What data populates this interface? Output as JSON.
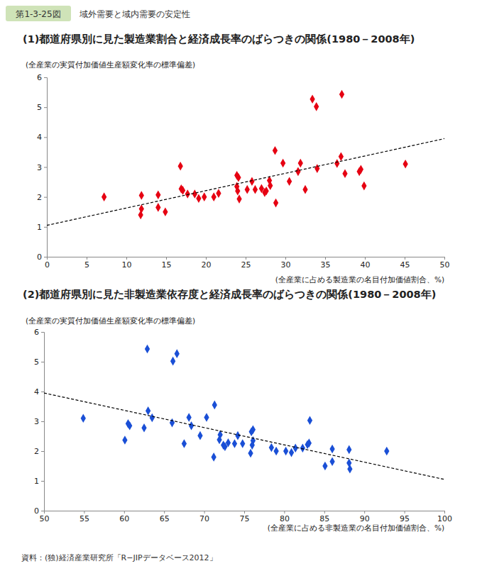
{
  "figure_number": "第1-3-25図",
  "figure_title": "域外需要と域内需要の安定性",
  "source": "資料：(独)経済産業研究所「R−JIPデータベース2012」",
  "chart_data": [
    {
      "type": "scatter",
      "title": "(1)都道府県別に見た製造業割合と経済成長率のばらつきの関係(1980－2008年)",
      "y_label": "(全産業の実質付加価値生産額変化率の標準偏差)",
      "x_label": "(全産業に占める製造業の名目付加価値割合、%)",
      "xlim": [
        0,
        50
      ],
      "xticks": [
        0,
        5,
        10,
        15,
        20,
        25,
        30,
        35,
        40,
        45,
        50
      ],
      "ylim": [
        0,
        6
      ],
      "yticks": [
        0,
        1,
        2,
        3,
        4,
        5,
        6
      ],
      "grid": false,
      "series": [
        {
          "type": "scatter",
          "marker": "diamond",
          "color": "#e60012",
          "x": [
            7.2,
            11.9,
            11.9,
            11.8,
            14.0,
            14.0,
            14.9,
            16.8,
            16.9,
            17.1,
            17.7,
            18.6,
            19.1,
            19.8,
            21.0,
            21.6,
            23.9,
            24.1,
            23.9,
            24.0,
            24.2,
            25.2,
            25.8,
            26.2,
            27.0,
            27.4,
            27.6,
            28.0,
            28.1,
            28.7,
            28.8,
            29.7,
            30.5,
            31.6,
            31.9,
            32.5,
            33.4,
            33.9,
            34.0,
            36.5,
            37.0,
            37.1,
            37.5,
            39.3,
            39.5,
            39.9,
            45.1
          ],
          "values": [
            2.0,
            2.05,
            1.6,
            1.4,
            2.07,
            1.65,
            1.5,
            3.03,
            2.27,
            2.22,
            2.1,
            2.1,
            1.95,
            2.0,
            2.0,
            2.12,
            2.72,
            2.65,
            2.35,
            2.2,
            1.93,
            2.25,
            2.52,
            2.25,
            2.28,
            2.15,
            2.2,
            2.55,
            2.38,
            3.55,
            1.8,
            3.13,
            2.52,
            2.85,
            3.13,
            2.25,
            5.27,
            5.02,
            2.95,
            3.12,
            3.35,
            5.43,
            2.78,
            2.85,
            2.92,
            2.37,
            3.1
          ]
        },
        {
          "type": "line",
          "line_style": "dashed",
          "color": "#000000",
          "x": [
            0,
            50
          ],
          "values": [
            1.05,
            3.95
          ]
        }
      ]
    },
    {
      "type": "scatter",
      "title": "(2)都道府県別に見た非製造業依存度と経済成長率のばらつきの関係(1980－2008年)",
      "y_label": "(全産業の実質付加価値生産額変化率の標準偏差)",
      "x_label": "(全産業に占める非製造業の名目付加価値割合、%)",
      "xlim": [
        50,
        100
      ],
      "xticks": [
        50,
        55,
        60,
        65,
        70,
        75,
        80,
        85,
        90,
        95,
        100
      ],
      "ylim": [
        0,
        6
      ],
      "yticks": [
        0,
        1,
        2,
        3,
        4,
        5,
        6
      ],
      "grid": false,
      "series": [
        {
          "type": "scatter",
          "marker": "diamond",
          "color": "#1a4fd6",
          "x": [
            92.8,
            88.1,
            88.1,
            88.2,
            86.0,
            86.0,
            85.1,
            83.2,
            83.1,
            82.9,
            82.3,
            81.4,
            80.9,
            80.2,
            79.0,
            78.4,
            76.1,
            75.9,
            76.1,
            76.0,
            75.8,
            74.8,
            74.2,
            73.8,
            73.0,
            72.6,
            72.4,
            72.0,
            71.9,
            71.3,
            71.2,
            70.3,
            69.5,
            68.4,
            68.1,
            67.5,
            66.6,
            66.1,
            66.0,
            63.5,
            63.0,
            62.9,
            62.5,
            60.7,
            60.5,
            60.1,
            54.9
          ],
          "values": [
            2.0,
            2.05,
            1.6,
            1.4,
            2.07,
            1.65,
            1.5,
            3.03,
            2.27,
            2.22,
            2.1,
            2.1,
            1.95,
            2.0,
            2.0,
            2.12,
            2.72,
            2.65,
            2.35,
            2.2,
            1.93,
            2.25,
            2.52,
            2.25,
            2.28,
            2.15,
            2.2,
            2.55,
            2.38,
            3.55,
            1.8,
            3.13,
            2.52,
            2.85,
            3.13,
            2.25,
            5.27,
            5.02,
            2.95,
            3.12,
            3.35,
            5.43,
            2.78,
            2.85,
            2.92,
            2.37,
            3.1
          ]
        },
        {
          "type": "line",
          "line_style": "dashed",
          "color": "#000000",
          "x": [
            50,
            100
          ],
          "values": [
            3.95,
            1.05
          ]
        }
      ]
    }
  ]
}
